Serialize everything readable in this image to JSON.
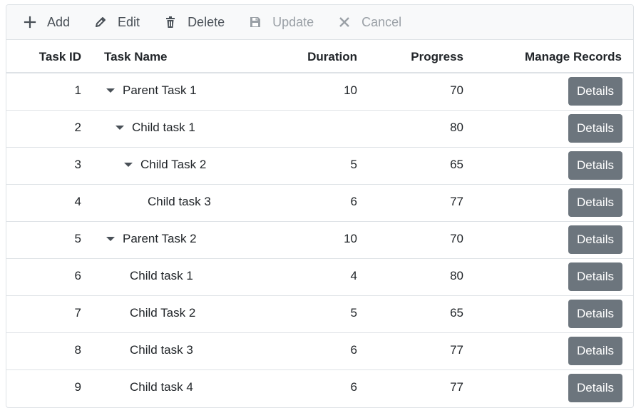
{
  "toolbar": {
    "items": [
      {
        "label": "Add",
        "icon": "plus-icon",
        "enabled": true
      },
      {
        "label": "Edit",
        "icon": "pencil-icon",
        "enabled": true
      },
      {
        "label": "Delete",
        "icon": "trash-icon",
        "enabled": true
      },
      {
        "label": "Update",
        "icon": "save-icon",
        "enabled": false
      },
      {
        "label": "Cancel",
        "icon": "close-icon",
        "enabled": false
      }
    ]
  },
  "columns": {
    "task_id": "Task ID",
    "task_name": "Task Name",
    "duration": "Duration",
    "progress": "Progress",
    "manage": "Manage Records"
  },
  "rows": [
    {
      "id": "1",
      "name": "Parent Task 1",
      "level": 0,
      "expandable": true,
      "duration": "10",
      "progress": "70",
      "action": "Details"
    },
    {
      "id": "2",
      "name": "Child task 1",
      "level": 1,
      "expandable": true,
      "duration": "",
      "progress": "80",
      "action": "Details"
    },
    {
      "id": "3",
      "name": "Child Task 2",
      "level": 2,
      "expandable": true,
      "duration": "5",
      "progress": "65",
      "action": "Details"
    },
    {
      "id": "4",
      "name": "Child task 3",
      "level": 3,
      "expandable": false,
      "duration": "6",
      "progress": "77",
      "action": "Details"
    },
    {
      "id": "5",
      "name": "Parent Task 2",
      "level": 0,
      "expandable": true,
      "duration": "10",
      "progress": "70",
      "action": "Details"
    },
    {
      "id": "6",
      "name": "Child task 1",
      "level": 1,
      "expandable": false,
      "duration": "4",
      "progress": "80",
      "action": "Details"
    },
    {
      "id": "7",
      "name": "Child Task 2",
      "level": 1,
      "expandable": false,
      "duration": "5",
      "progress": "65",
      "action": "Details"
    },
    {
      "id": "8",
      "name": "Child task 3",
      "level": 1,
      "expandable": false,
      "duration": "6",
      "progress": "77",
      "action": "Details"
    },
    {
      "id": "9",
      "name": "Child task 4",
      "level": 1,
      "expandable": false,
      "duration": "6",
      "progress": "77",
      "action": "Details"
    }
  ]
}
